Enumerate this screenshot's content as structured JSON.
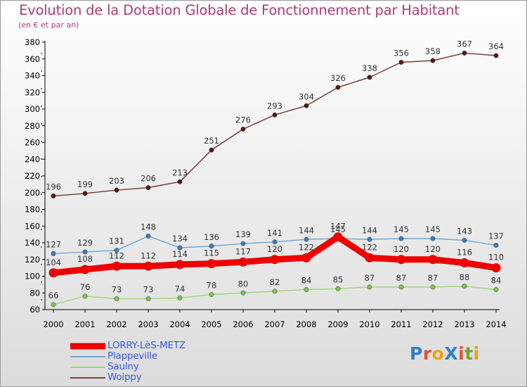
{
  "header": {
    "title": "Evolution de la Dotation Globale de Fonctionnement par Habitant",
    "subtitle": "(en € et par an)"
  },
  "logo": {
    "text": "ProXiti",
    "colors": [
      "#2e82c8",
      "#e0522c",
      "#f0a010",
      "#2e82c8",
      "#e0522c",
      "#6aa832",
      "#f0a010"
    ]
  },
  "colors": {
    "title": "#b13a78",
    "legend_text": "#3a5be0"
  },
  "chart_data": {
    "type": "line",
    "title": "Evolution de la Dotation Globale de Fonctionnement par Habitant",
    "subtitle": "(en € et par an)",
    "xlabel": "",
    "ylabel": "",
    "categories": [
      "2000",
      "2001",
      "2002",
      "2003",
      "2004",
      "2005",
      "2006",
      "2007",
      "2008",
      "2009",
      "2010",
      "2011",
      "2012",
      "2013",
      "2014"
    ],
    "ylim": [
      60,
      380
    ],
    "yticks": [
      60,
      80,
      100,
      120,
      140,
      160,
      180,
      200,
      220,
      240,
      260,
      280,
      300,
      320,
      340,
      360,
      380
    ],
    "grid": false,
    "legend_position": "bottom-left",
    "series": [
      {
        "name": "Woippy",
        "color": "#7a3c3c",
        "marker": "#5a1818",
        "values": [
          196,
          199,
          203,
          206,
          213,
          251,
          276,
          293,
          304,
          326,
          338,
          356,
          358,
          367,
          364
        ]
      },
      {
        "name": "Plappeville",
        "color": "#6ea8d8",
        "marker": "#3a7ec0",
        "values": [
          127,
          129,
          131,
          148,
          134,
          136,
          139,
          141,
          144,
          145,
          144,
          145,
          145,
          143,
          137
        ]
      },
      {
        "name": "Saulny",
        "color": "#9fd87a",
        "marker": "#7cc44e",
        "values": [
          66,
          76,
          73,
          73,
          74,
          78,
          80,
          82,
          84,
          85,
          87,
          87,
          87,
          88,
          84
        ]
      },
      {
        "name": "LORRY-LèS-METZ",
        "color": "#ee0000",
        "marker": "#ee0000",
        "values": [
          104,
          108,
          112,
          112,
          114,
          115,
          117,
          120,
          122,
          147,
          122,
          120,
          120,
          116,
          110
        ]
      }
    ],
    "legend": [
      "LORRY-LèS-METZ",
      "Plappeville",
      "Saulny",
      "Woippy"
    ]
  }
}
